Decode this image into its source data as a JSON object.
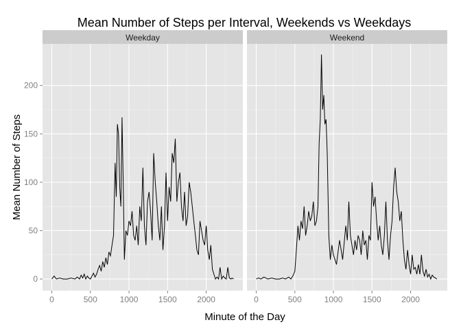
{
  "chart_data": {
    "type": "line",
    "title": "Mean Number of Steps per Interval, Weekends vs Weekdays",
    "xlabel": "Minute of the Day",
    "ylabel": "Mean Number of Steps",
    "xlim": [
      -120,
      2475
    ],
    "ylim": [
      -12,
      243
    ],
    "x_ticks": [
      0,
      500,
      1000,
      1500,
      2000
    ],
    "x_tick_labels": [
      "0",
      "500",
      "1000",
      "1500",
      "2000"
    ],
    "y_ticks": [
      0,
      50,
      100,
      150,
      200
    ],
    "y_tick_labels": [
      "0",
      "50",
      "100",
      "150",
      "200"
    ],
    "grid": true,
    "colors": {
      "panel_bg": "#e5e5e5",
      "grid_major": "#ffffff",
      "strip_bg": "#cccccc",
      "line": "#000000",
      "tick_text": "#7f7f7f"
    },
    "panels": [
      {
        "strip": "Weekday",
        "series": {
          "x": [
            0,
            30,
            60,
            100,
            150,
            200,
            250,
            300,
            330,
            360,
            380,
            400,
            420,
            440,
            460,
            480,
            500,
            520,
            540,
            560,
            580,
            600,
            620,
            640,
            660,
            680,
            700,
            720,
            740,
            760,
            780,
            800,
            820,
            835,
            850,
            865,
            880,
            895,
            910,
            925,
            940,
            960,
            980,
            1000,
            1020,
            1040,
            1060,
            1080,
            1100,
            1120,
            1140,
            1160,
            1180,
            1200,
            1220,
            1240,
            1260,
            1280,
            1300,
            1320,
            1340,
            1360,
            1380,
            1400,
            1420,
            1440,
            1460,
            1480,
            1500,
            1520,
            1540,
            1560,
            1580,
            1600,
            1620,
            1640,
            1660,
            1680,
            1700,
            1720,
            1740,
            1760,
            1780,
            1800,
            1820,
            1840,
            1860,
            1880,
            1900,
            1920,
            1940,
            1960,
            1980,
            2000,
            2020,
            2040,
            2060,
            2080,
            2100,
            2120,
            2140,
            2160,
            2180,
            2200,
            2220,
            2240,
            2260,
            2280,
            2300,
            2320,
            2335,
            2355
          ],
          "y": [
            0,
            3,
            0,
            1,
            0,
            0,
            1,
            0,
            2,
            0,
            4,
            1,
            5,
            0,
            3,
            1,
            0,
            3,
            6,
            2,
            5,
            10,
            14,
            8,
            18,
            12,
            22,
            15,
            28,
            24,
            35,
            45,
            120,
            85,
            160,
            150,
            95,
            75,
            167,
            100,
            20,
            50,
            45,
            60,
            55,
            70,
            45,
            40,
            55,
            35,
            75,
            60,
            115,
            55,
            35,
            80,
            90,
            70,
            40,
            130,
            100,
            80,
            55,
            40,
            75,
            30,
            55,
            110,
            60,
            95,
            80,
            130,
            120,
            145,
            80,
            100,
            110,
            75,
            60,
            90,
            55,
            65,
            100,
            90,
            75,
            60,
            45,
            30,
            25,
            60,
            50,
            40,
            35,
            55,
            30,
            20,
            35,
            10,
            5,
            0,
            2,
            0,
            12,
            0,
            3,
            1,
            0,
            12,
            1,
            0,
            1,
            0
          ]
        }
      },
      {
        "strip": "Weekend",
        "series": {
          "x": [
            0,
            30,
            60,
            100,
            150,
            200,
            250,
            300,
            340,
            380,
            420,
            450,
            480,
            500,
            520,
            540,
            560,
            580,
            600,
            620,
            640,
            660,
            680,
            700,
            720,
            740,
            760,
            780,
            800,
            815,
            830,
            845,
            860,
            875,
            890,
            905,
            920,
            940,
            960,
            980,
            1000,
            1020,
            1040,
            1060,
            1080,
            1100,
            1120,
            1140,
            1160,
            1180,
            1200,
            1220,
            1240,
            1260,
            1280,
            1300,
            1320,
            1340,
            1360,
            1380,
            1400,
            1420,
            1440,
            1460,
            1480,
            1500,
            1520,
            1540,
            1560,
            1580,
            1600,
            1620,
            1640,
            1660,
            1680,
            1700,
            1720,
            1740,
            1760,
            1780,
            1800,
            1820,
            1840,
            1860,
            1880,
            1900,
            1920,
            1940,
            1960,
            1980,
            2000,
            2020,
            2040,
            2060,
            2080,
            2100,
            2120,
            2140,
            2160,
            2180,
            2200,
            2220,
            2240,
            2260,
            2280,
            2300,
            2320,
            2340
          ],
          "y": [
            0,
            1,
            0,
            2,
            0,
            1,
            0,
            0,
            1,
            0,
            2,
            0,
            4,
            8,
            30,
            55,
            40,
            60,
            52,
            75,
            45,
            55,
            70,
            60,
            65,
            80,
            55,
            60,
            75,
            140,
            165,
            232,
            175,
            190,
            160,
            165,
            130,
            45,
            20,
            35,
            25,
            20,
            15,
            28,
            40,
            30,
            20,
            38,
            55,
            40,
            80,
            45,
            35,
            25,
            40,
            30,
            45,
            40,
            25,
            50,
            35,
            40,
            20,
            45,
            40,
            100,
            75,
            85,
            60,
            40,
            55,
            35,
            25,
            45,
            80,
            40,
            20,
            45,
            60,
            95,
            115,
            90,
            80,
            60,
            70,
            40,
            20,
            10,
            30,
            15,
            5,
            25,
            10,
            12,
            5,
            15,
            5,
            25,
            8,
            3,
            10,
            2,
            5,
            0,
            4,
            2,
            1,
            0
          ]
        }
      }
    ]
  }
}
